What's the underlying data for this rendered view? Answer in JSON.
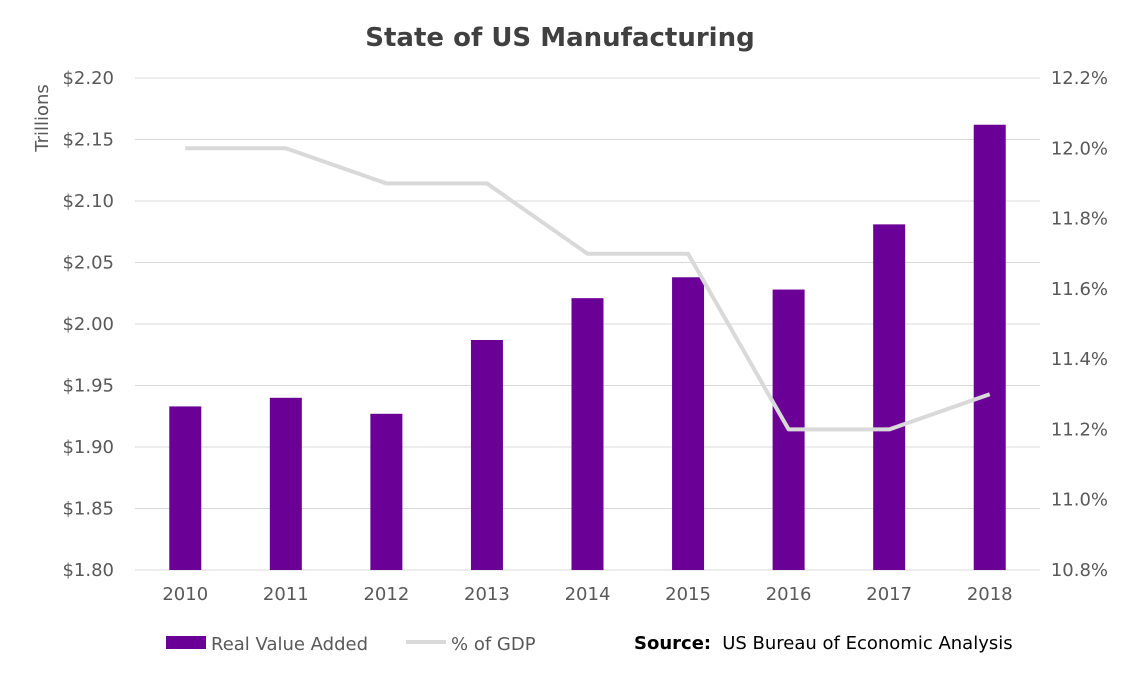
{
  "chart_data": {
    "type": "bar",
    "title": "State of US Manufacturing",
    "ylabel": "Trillions",
    "y2label": "",
    "xlabel": "",
    "categories": [
      "2010",
      "2011",
      "2012",
      "2013",
      "2014",
      "2015",
      "2016",
      "2017",
      "2018"
    ],
    "series": [
      {
        "name": "Real Value Added",
        "type": "bar",
        "axis": "left",
        "color": "#6a0096",
        "values": [
          1.933,
          1.94,
          1.927,
          1.987,
          2.021,
          2.038,
          2.028,
          2.081,
          2.162
        ]
      },
      {
        "name": "% of GDP",
        "type": "line",
        "axis": "right",
        "color": "#d9d9d9",
        "values": [
          12.0,
          12.0,
          11.9,
          11.9,
          11.7,
          11.7,
          11.2,
          11.2,
          11.3
        ]
      }
    ],
    "ylim": [
      1.8,
      2.2
    ],
    "y_ticks": [
      "$1.80",
      "$1.85",
      "$1.90",
      "$1.95",
      "$2.00",
      "$2.05",
      "$2.10",
      "$2.15",
      "$2.20"
    ],
    "y2lim": [
      10.8,
      12.2
    ],
    "y2_ticks": [
      "10.8%",
      "11.0%",
      "11.2%",
      "11.4%",
      "11.6%",
      "11.8%",
      "12.0%",
      "12.2%"
    ],
    "grid": true,
    "legend_position": "bottom-left",
    "gridline_color": "#d9d9d9"
  },
  "source": {
    "label": "Source:",
    "text": "US Bureau of Economic Analysis"
  }
}
